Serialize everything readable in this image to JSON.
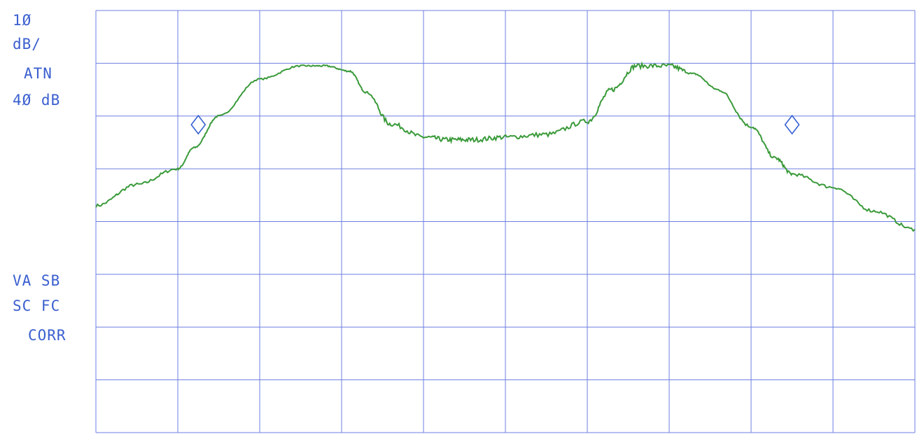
{
  "colors": {
    "grid": "#6e7fe0",
    "trace": "#3a9a3a",
    "text": "#3a5fcf",
    "marker": "#2f5bd0"
  },
  "annotations": {
    "scale_value": "1Ø",
    "scale_unit": "dB/",
    "atn_label": "ATN",
    "atn_value": "4Ø dB",
    "flags_line1": "VA SB",
    "flags_line2": "SC FC",
    "flags_line3": "CORR"
  },
  "chart_data": {
    "type": "line",
    "title": "",
    "xlabel": "",
    "ylabel": "",
    "grid": true,
    "grid_divisions": {
      "x": 10,
      "y": 8
    },
    "xlim": [
      0,
      10
    ],
    "ylim": [
      0,
      8
    ],
    "series": [
      {
        "x": [
          0,
          0.5,
          1.0,
          1.2,
          1.5,
          2.0,
          2.5,
          2.8,
          3.1,
          3.3,
          3.6,
          4.0,
          4.3,
          4.6,
          5.0,
          5.5,
          6.0,
          6.3,
          6.6,
          7.0,
          7.3,
          7.6,
          8.0,
          8.3,
          8.5,
          9.0,
          9.5,
          10.0
        ],
        "y": [
          4.3,
          4.7,
          5.0,
          5.4,
          6.0,
          6.7,
          6.95,
          6.95,
          6.85,
          6.45,
          5.85,
          5.6,
          5.55,
          5.55,
          5.6,
          5.65,
          5.9,
          6.5,
          6.95,
          6.95,
          6.8,
          6.5,
          5.8,
          5.2,
          4.9,
          4.65,
          4.2,
          3.85
        ]
      }
    ],
    "markers": [
      {
        "x": 1.25,
        "y": 5.65
      },
      {
        "x": 8.5,
        "y": 5.65
      }
    ]
  }
}
